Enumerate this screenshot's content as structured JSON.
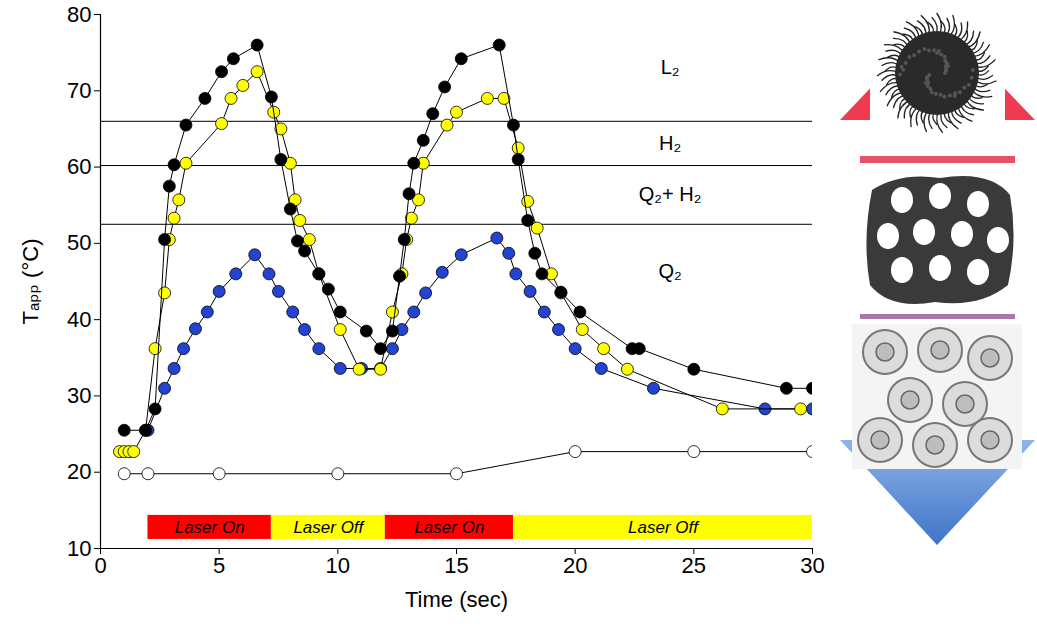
{
  "chart_data": {
    "type": "line",
    "x_label": "Time (sec)",
    "y_label": "Tₐₚₚ (°C)",
    "xlim": [
      0,
      30
    ],
    "xticks": [
      0,
      5,
      10,
      15,
      20,
      25,
      30
    ],
    "ylim": [
      10,
      80
    ],
    "yticks": [
      10,
      20,
      30,
      40,
      50,
      60,
      70,
      80
    ],
    "grid": false,
    "phase_boundaries": {
      "values": [
        66,
        60.2,
        52.5
      ],
      "labels": [
        "L₂",
        "H₂",
        "Q₂+ H₂",
        "Q₂"
      ]
    },
    "laser_periods": [
      {
        "label": "Laser On",
        "start": 2.0,
        "end": 7.2,
        "color": "#ff0000"
      },
      {
        "label": "Laser Off",
        "start": 7.2,
        "end": 12.0,
        "color": "#ffff00"
      },
      {
        "label": "Laser On",
        "start": 12.0,
        "end": 17.4,
        "color": "#ff0000"
      },
      {
        "label": "Laser Off",
        "start": 17.4,
        "end": 30.0,
        "color": "#ffff00"
      }
    ],
    "series": [
      {
        "color": "#000000",
        "marker": "open_circle",
        "x": [
          1.0,
          2.0,
          5.0,
          10.0,
          15.0,
          20.0,
          25.0,
          30.0
        ],
        "values": [
          19.8,
          19.8,
          19.8,
          19.8,
          19.8,
          22.7,
          22.7,
          22.7
        ]
      },
      {
        "color": "#2244d0",
        "marker": "circle",
        "x": [
          2.0,
          2.7,
          3.1,
          3.5,
          4.0,
          4.5,
          5.0,
          5.7,
          6.5,
          7.1,
          7.5,
          8.1,
          8.6,
          9.2,
          10.1,
          11.0,
          11.8,
          12.3,
          12.7,
          13.2,
          13.7,
          14.4,
          15.2,
          16.7,
          17.2,
          17.5,
          18.1,
          18.7,
          19.3,
          20.0,
          21.1,
          23.3,
          28.0,
          30.0
        ],
        "values": [
          25.5,
          31,
          33.6,
          36.2,
          38.8,
          41,
          43.7,
          46,
          48.5,
          46,
          43.7,
          41,
          38.7,
          36.2,
          33.6,
          33.6,
          33.6,
          36.2,
          38.7,
          41,
          43.5,
          46.2,
          48.5,
          50.7,
          48.7,
          46,
          43.7,
          41,
          38.7,
          36.2,
          33.6,
          31,
          28.3,
          28.3
        ]
      },
      {
        "color": "#ffff00",
        "marker": "circle",
        "x": [
          0.8,
          1.0,
          1.2,
          1.4,
          1.9,
          2.3,
          2.7,
          2.9,
          3.1,
          3.3,
          3.6,
          5.1,
          5.5,
          6.0,
          6.6,
          7.3,
          7.6,
          8.0,
          8.2,
          8.4,
          8.8,
          9.2,
          10.1,
          10.9,
          11.8,
          12.3,
          12.7,
          12.9,
          13.1,
          13.4,
          13.6,
          14.6,
          15.0,
          16.3,
          17.0,
          17.6,
          18.0,
          18.4,
          19.0,
          19.4,
          20.3,
          21.2,
          22.2,
          26.2,
          29.5
        ],
        "values": [
          22.7,
          22.7,
          22.7,
          22.7,
          25.5,
          36.2,
          43.5,
          50.5,
          53.3,
          55.7,
          60.5,
          65.7,
          69,
          70.7,
          72.5,
          67.2,
          65,
          60.5,
          55.7,
          53,
          50.5,
          46,
          38.7,
          33.5,
          33.5,
          41,
          46,
          50.5,
          53.3,
          55.7,
          60.5,
          65.5,
          67.2,
          69,
          69,
          62.5,
          55.5,
          52,
          46,
          43.5,
          38.7,
          36.2,
          33.5,
          28.3,
          28.3
        ]
      },
      {
        "color": "#000000",
        "marker": "circle",
        "x": [
          1.0,
          1.9,
          2.3,
          2.7,
          2.9,
          3.1,
          3.6,
          4.4,
          5.1,
          5.6,
          6.6,
          7.2,
          7.6,
          8.0,
          8.3,
          8.6,
          9.2,
          9.6,
          10.1,
          11.2,
          11.8,
          12.3,
          12.6,
          12.8,
          13.0,
          13.2,
          13.6,
          14.0,
          14.5,
          15.2,
          16.8,
          17.4,
          17.6,
          18.0,
          18.3,
          18.6,
          19.4,
          20.2,
          22.4,
          22.7,
          25.0,
          28.9,
          30.0
        ],
        "values": [
          25.5,
          25.5,
          28.3,
          50.5,
          57.5,
          60.3,
          65.5,
          69,
          72.5,
          74.2,
          76,
          69.2,
          61,
          54.5,
          50.3,
          49,
          46,
          44,
          41,
          38.5,
          36.2,
          38.5,
          45.7,
          50.5,
          56.5,
          60.5,
          63.5,
          67,
          70.5,
          74.2,
          76,
          65.5,
          61,
          53,
          48.7,
          46,
          43.6,
          41,
          36.2,
          36.2,
          33.5,
          31,
          31
        ]
      }
    ]
  }
}
